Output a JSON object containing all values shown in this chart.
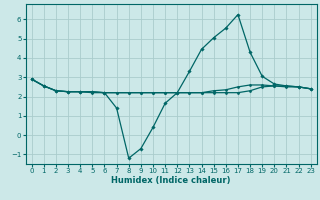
{
  "xlabel": "Humidex (Indice chaleur)",
  "ylabel": "",
  "background_color": "#cce8e8",
  "grid_color": "#aacccc",
  "line_color": "#006666",
  "xlim": [
    -0.5,
    23.5
  ],
  "ylim": [
    -1.5,
    6.8
  ],
  "xticks": [
    0,
    1,
    2,
    3,
    4,
    5,
    6,
    7,
    8,
    9,
    10,
    11,
    12,
    13,
    14,
    15,
    16,
    17,
    18,
    19,
    20,
    21,
    22,
    23
  ],
  "yticks": [
    -1,
    0,
    1,
    2,
    3,
    4,
    5,
    6
  ],
  "series1_x": [
    0,
    1,
    2,
    3,
    4,
    5,
    6,
    7,
    8,
    9,
    10,
    11,
    12,
    13,
    14,
    15,
    16,
    17,
    18,
    19,
    20,
    21,
    22,
    23
  ],
  "series1_y": [
    2.9,
    2.55,
    2.3,
    2.25,
    2.25,
    2.25,
    2.2,
    1.4,
    -1.2,
    -0.7,
    0.4,
    1.65,
    2.2,
    3.3,
    4.45,
    5.05,
    5.55,
    6.25,
    4.3,
    3.05,
    2.65,
    2.55,
    2.5,
    2.4
  ],
  "series2_x": [
    0,
    1,
    2,
    3,
    4,
    5,
    6,
    7,
    8,
    9,
    10,
    11,
    12,
    13,
    14,
    15,
    16,
    17,
    18,
    19,
    20,
    21,
    22,
    23
  ],
  "series2_y": [
    2.9,
    2.55,
    2.3,
    2.25,
    2.25,
    2.25,
    2.2,
    2.2,
    2.2,
    2.2,
    2.2,
    2.2,
    2.2,
    2.2,
    2.2,
    2.2,
    2.2,
    2.2,
    2.3,
    2.5,
    2.55,
    2.55,
    2.5,
    2.4
  ],
  "series3_x": [
    0,
    1,
    2,
    3,
    4,
    5,
    6,
    7,
    8,
    9,
    10,
    11,
    12,
    13,
    14,
    15,
    16,
    17,
    18,
    19,
    20,
    21,
    22,
    23
  ],
  "series3_y": [
    2.9,
    2.55,
    2.3,
    2.25,
    2.25,
    2.2,
    2.2,
    2.2,
    2.2,
    2.2,
    2.2,
    2.2,
    2.2,
    2.2,
    2.2,
    2.3,
    2.35,
    2.5,
    2.6,
    2.6,
    2.55,
    2.5,
    2.5,
    2.4
  ],
  "xlabel_fontsize": 6.0,
  "tick_fontsize": 5.0
}
